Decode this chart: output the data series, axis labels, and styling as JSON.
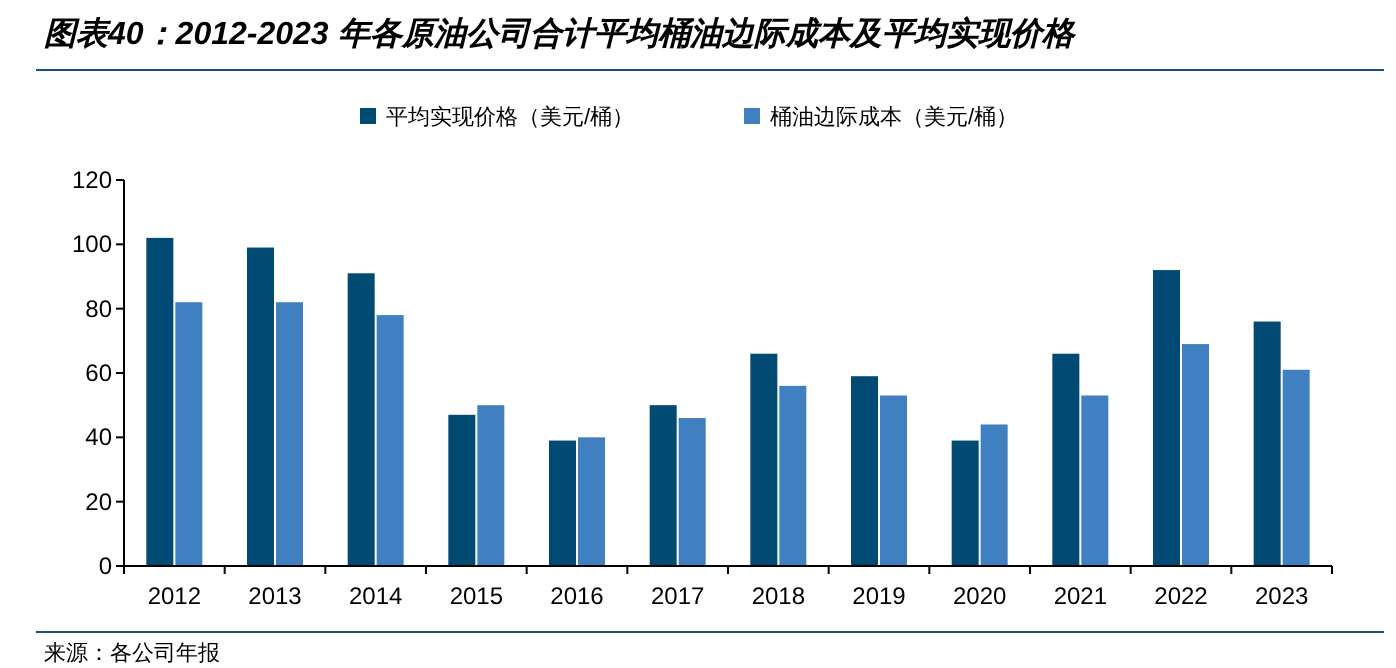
{
  "chart_data": {
    "type": "bar",
    "title": "图表40：2012-2023 年各原油公司合计平均桶油边际成本及平均实现价格",
    "categories": [
      "2012",
      "2013",
      "2014",
      "2015",
      "2016",
      "2017",
      "2018",
      "2019",
      "2020",
      "2021",
      "2022",
      "2023"
    ],
    "series": [
      {
        "name": "平均实现价格（美元/桶）",
        "color": "#004a73",
        "values": [
          102,
          99,
          91,
          47,
          39,
          50,
          66,
          59,
          39,
          66,
          92,
          76
        ]
      },
      {
        "name": "桶油边际成本（美元/桶）",
        "color": "#4080c0",
        "values": [
          82,
          82,
          78,
          50,
          40,
          46,
          56,
          53,
          44,
          53,
          69,
          61
        ]
      }
    ],
    "ylim": [
      0,
      120
    ],
    "yticks": [
      0,
      20,
      40,
      60,
      80,
      100,
      120
    ],
    "grid": false,
    "legend": "top",
    "annotations": [
      "来源：各公司年报"
    ]
  }
}
